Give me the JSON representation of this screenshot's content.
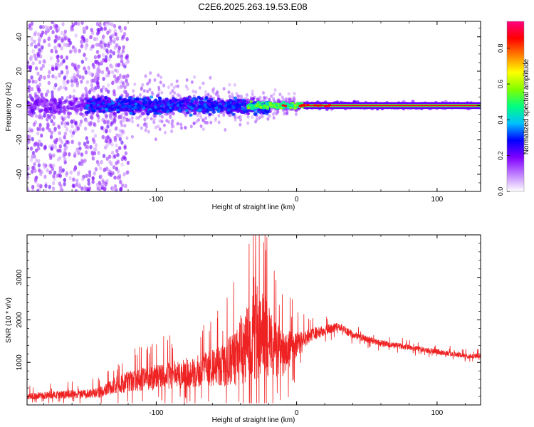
{
  "title": "C2E6.2025.263.19.53.E08",
  "chart_data": [
    {
      "type": "heatmap",
      "title": "C2E6.2025.263.19.53.E08",
      "xlabel": "Height of straight line (km)",
      "ylabel": "Frequency (Hz)",
      "xlim": [
        -192,
        131
      ],
      "ylim": [
        -50,
        49
      ],
      "xticks": [
        -100,
        0,
        100
      ],
      "xtick_labels": [
        "-100",
        "0",
        "100"
      ],
      "yticks": [
        -40,
        -20,
        0,
        20,
        40
      ],
      "ytick_labels": [
        "-40",
        "-20",
        "0",
        "20",
        "40"
      ],
      "band": {
        "center_hz": 0,
        "features": [
          {
            "x_range_km": [
              -192,
              -120
            ],
            "freq_spread_hz": [
              -50,
              49
            ],
            "amplitude": 0.2,
            "note": "diffuse purple scatter"
          },
          {
            "x_range_km": [
              -150,
              -20
            ],
            "freq_spread_hz": [
              -10,
              10
            ],
            "amplitude": 0.3,
            "note": "blue/cyan band"
          },
          {
            "x_range_km": [
              -35,
              10
            ],
            "freq_spread_hz": [
              -4,
              4
            ],
            "amplitude": 0.55,
            "note": "green/yellow patches"
          },
          {
            "x_range_km": [
              5,
              131
            ],
            "freq_spread_hz": [
              -1,
              1
            ],
            "amplitude": 0.9,
            "note": "narrow red line at 0 Hz"
          }
        ]
      },
      "colorbar": {
        "label": "Normalized spectral amplitude",
        "range": [
          0,
          0.95
        ],
        "ticks": [
          0.0,
          0.2,
          0.4,
          0.6,
          0.8
        ],
        "tick_labels": [
          "0.0",
          "0.2",
          "0.4",
          "0.6",
          "0.8"
        ],
        "colormap": [
          "#ffffff",
          "#c080ff",
          "#8000ff",
          "#0000ff",
          "#00c0ff",
          "#00ff80",
          "#80ff00",
          "#ffff00",
          "#ff8000",
          "#ff0000",
          "#ff0080"
        ]
      }
    },
    {
      "type": "line",
      "title": "",
      "xlabel": "Height of straight line (km)",
      "ylabel": "SNR (10 * v/v)",
      "xlim": [
        -192,
        131
      ],
      "ylim": [
        0,
        4000
      ],
      "xticks": [
        -100,
        0,
        100
      ],
      "xtick_labels": [
        "-100",
        "0",
        "100"
      ],
      "yticks": [
        1000,
        2000,
        3000
      ],
      "ytick_labels": [
        "1000",
        "2000",
        "3000"
      ],
      "color": "#ee2222",
      "x": [
        -192,
        -180,
        -170,
        -160,
        -150,
        -140,
        -130,
        -120,
        -110,
        -100,
        -90,
        -80,
        -70,
        -60,
        -50,
        -45,
        -40,
        -35,
        -30,
        -25,
        -20,
        -15,
        -10,
        -5,
        0,
        5,
        10,
        15,
        20,
        25,
        30,
        35,
        40,
        50,
        60,
        70,
        80,
        90,
        100,
        110,
        120,
        131
      ],
      "y": [
        200,
        220,
        240,
        250,
        260,
        300,
        450,
        550,
        600,
        650,
        700,
        750,
        800,
        850,
        950,
        1100,
        1300,
        1600,
        1800,
        1700,
        1500,
        1300,
        1200,
        1300,
        1400,
        1500,
        1650,
        1700,
        1750,
        1800,
        1850,
        1750,
        1650,
        1550,
        1450,
        1400,
        1350,
        1300,
        1250,
        1200,
        1150,
        1150
      ],
      "noise_envelope": [
        150,
        160,
        170,
        180,
        200,
        250,
        350,
        450,
        500,
        550,
        600,
        650,
        700,
        800,
        1000,
        1200,
        1500,
        1900,
        2300,
        2000,
        1600,
        1200,
        1000,
        800,
        600,
        400,
        300,
        250,
        220,
        200,
        180,
        170,
        160,
        150,
        140,
        130,
        120,
        120,
        110,
        110,
        100,
        100
      ]
    }
  ]
}
